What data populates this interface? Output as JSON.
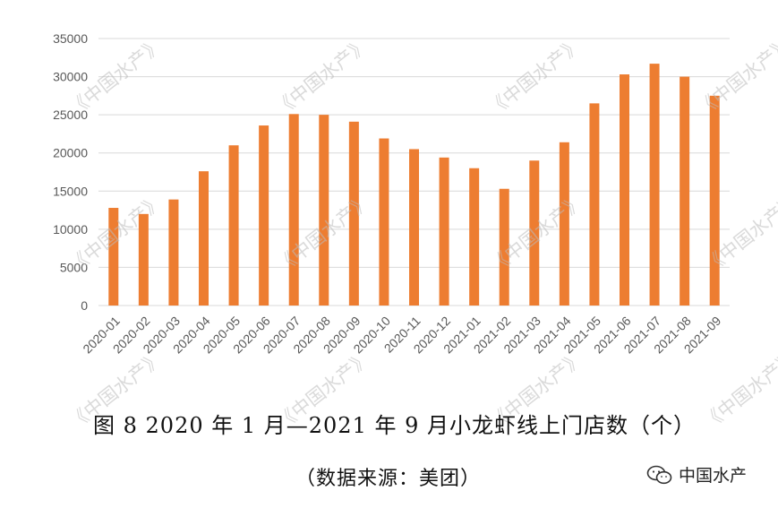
{
  "chart_data": {
    "type": "bar",
    "categories": [
      "2020-01",
      "2020-02",
      "2020-03",
      "2020-04",
      "2020-05",
      "2020-06",
      "2020-07",
      "2020-08",
      "2020-09",
      "2020-10",
      "2020-11",
      "2020-12",
      "2021-01",
      "2021-02",
      "2021-03",
      "2021-04",
      "2021-05",
      "2021-06",
      "2021-07",
      "2021-08",
      "2021-09"
    ],
    "values": [
      12800,
      12000,
      13900,
      17600,
      21000,
      23600,
      25100,
      25000,
      24100,
      21900,
      20500,
      19400,
      18000,
      15300,
      19000,
      21400,
      26500,
      30300,
      31700,
      30000,
      27500
    ],
    "ylim": [
      0,
      35000
    ],
    "yticks": [
      0,
      5000,
      10000,
      15000,
      20000,
      25000,
      30000,
      35000
    ],
    "grid": true,
    "bar_color": "#ED7D31",
    "grid_color": "#d9d9d9"
  },
  "caption": {
    "title": "图 8 2020 年 1 月—2021 年 9 月小龙虾线上门店数（个）",
    "source": "（数据来源：美团）"
  },
  "watermark_text": "《中国水产》",
  "logo_text": "中国水产"
}
